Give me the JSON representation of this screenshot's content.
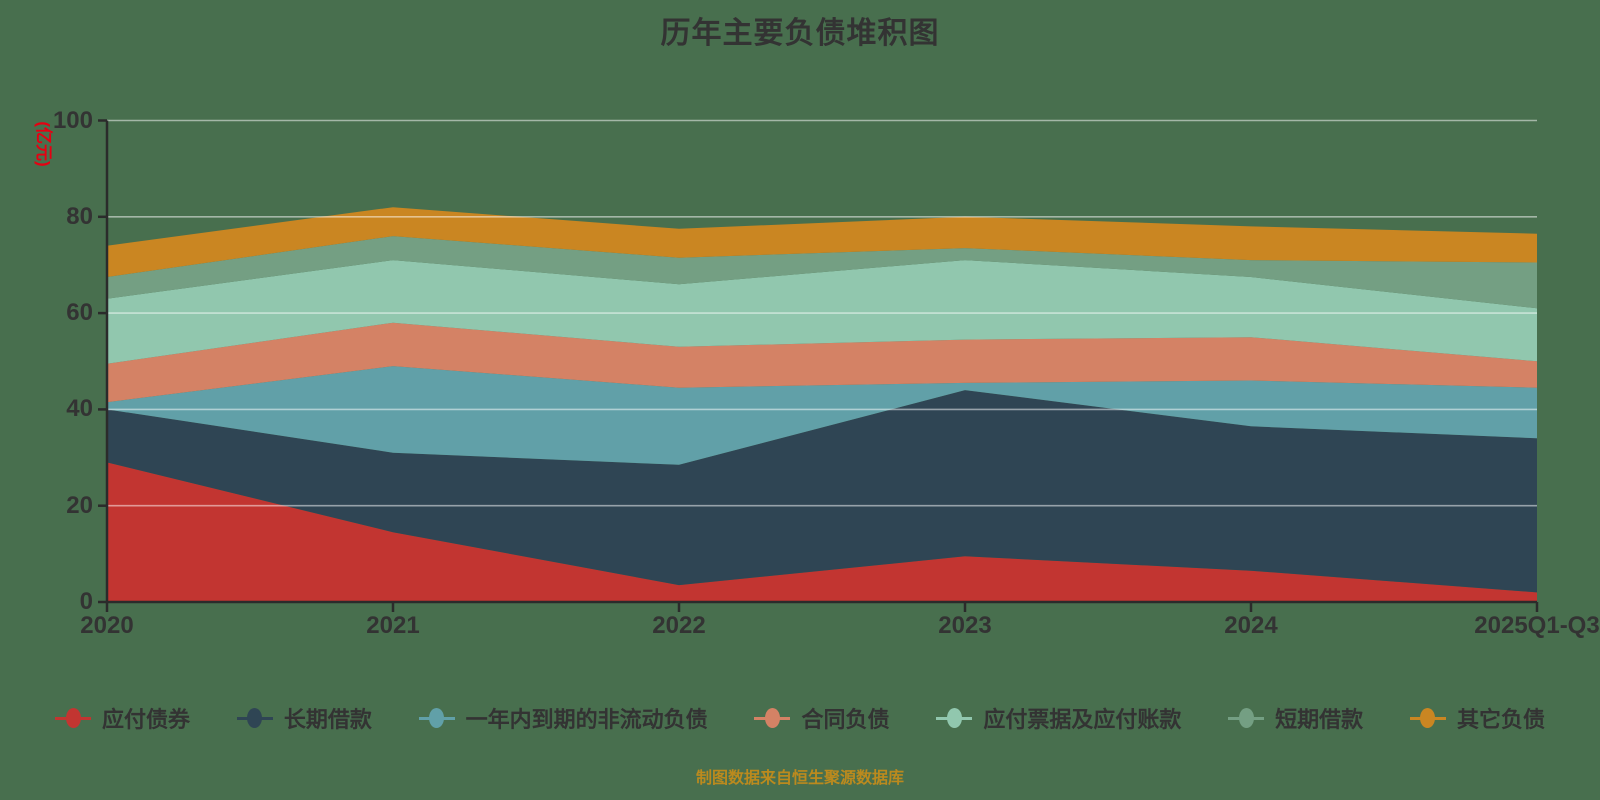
{
  "title": "历年主要负债堆积图",
  "footer": "制图数据来自恒生聚源数据库",
  "colors": {
    "background": "#486F4E",
    "text": "#333333",
    "axis": "#2B2B2B",
    "gridline": "rgba(255,255,255,0.5)",
    "unit_label": "#e60012",
    "footer": "#BB8A1E"
  },
  "chart_data": {
    "type": "area",
    "stacked": true,
    "title": "历年主要负债堆积图",
    "unit_label": "(亿元)",
    "xlabel": "",
    "ylabel": "(亿元)",
    "ylim": [
      0,
      100
    ],
    "y_ticks": [
      0,
      20,
      40,
      60,
      80,
      100
    ],
    "grid": true,
    "legend_position": "bottom",
    "categories": [
      "2020",
      "2021",
      "2022",
      "2023",
      "2024",
      "2025Q1-Q3"
    ],
    "series": [
      {
        "name": "应付债券",
        "color": "#c23531",
        "values": [
          29,
          14.5,
          3.5,
          9.5,
          6.5,
          2
        ]
      },
      {
        "name": "长期借款",
        "color": "#2f4554",
        "values": [
          11,
          16.5,
          25,
          34.5,
          30,
          32
        ]
      },
      {
        "name": "一年内到期的非流动负债",
        "color": "#61a0a8",
        "values": [
          1.5,
          18,
          16,
          1.5,
          9.5,
          10.5
        ]
      },
      {
        "name": "合同负债",
        "color": "#d48265",
        "values": [
          8,
          9,
          8.5,
          9,
          9,
          5.5
        ]
      },
      {
        "name": "应付票据及应付账款",
        "color": "#91c7ae",
        "values": [
          13.5,
          13,
          13,
          16.5,
          12.5,
          11
        ]
      },
      {
        "name": "短期借款",
        "color": "#749f83",
        "values": [
          4.5,
          5,
          5.5,
          2.5,
          3.5,
          9.5
        ]
      },
      {
        "name": "其它负债",
        "color": "#ca8622",
        "values": [
          6.5,
          6,
          6,
          6.5,
          7,
          6
        ]
      }
    ],
    "stack_totals": [
      74,
      82,
      77.5,
      80,
      78,
      76.5
    ]
  }
}
